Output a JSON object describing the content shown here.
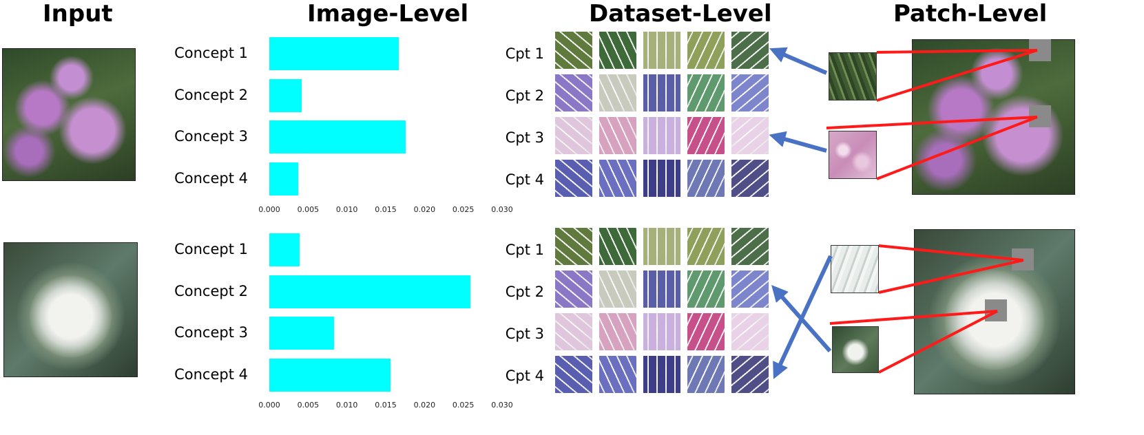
{
  "headers": {
    "input": "Input",
    "image_level": "Image-Level",
    "dataset_level": "Dataset-Level",
    "patch_level": "Patch-Level"
  },
  "colors": {
    "bar": "#00ffff",
    "link_line": "#ff1a1a",
    "arrow": "#4a72c4"
  },
  "chart_data": [
    {
      "type": "bar",
      "orientation": "horizontal",
      "categories": [
        "Concept 1",
        "Concept 2",
        "Concept 3",
        "Concept 4"
      ],
      "values": [
        0.0167,
        0.0042,
        0.0176,
        0.0037
      ],
      "xlim": [
        0,
        0.03
      ],
      "xticks": [
        "0.000",
        "0.005",
        "0.010",
        "0.015",
        "0.020",
        "0.025",
        "0.030"
      ]
    },
    {
      "type": "bar",
      "orientation": "horizontal",
      "categories": [
        "Concept 1",
        "Concept 2",
        "Concept 3",
        "Concept 4"
      ],
      "values": [
        0.0039,
        0.0259,
        0.0083,
        0.0156
      ],
      "xlim": [
        0,
        0.03
      ],
      "xticks": [
        "0.000",
        "0.005",
        "0.010",
        "0.015",
        "0.020",
        "0.025",
        "0.030"
      ]
    }
  ],
  "rows": [
    {
      "input_image": "pink-scabiosa-flower-photo",
      "concept_labels": [
        "Cpt 1",
        "Cpt 2",
        "Cpt 3",
        "Cpt 4"
      ],
      "patches": [
        "green-leaf-patch",
        "pink-petal-patch"
      ],
      "patch_image": "pink-scabiosa-flower-photo"
    },
    {
      "input_image": "white-globe-thistle-photo",
      "concept_labels": [
        "Cpt 1",
        "Cpt 2",
        "Cpt 3",
        "Cpt 4"
      ],
      "patches": [
        "white-petal-patch",
        "white-green-patch"
      ],
      "patch_image": "white-globe-thistle-photo"
    }
  ],
  "concept_prototypes": [
    {
      "name": "green-foliage",
      "colors": [
        "#5f7a3c",
        "#3e6a3a",
        "#a5b07a",
        "#8ea05a",
        "#4c6e48"
      ]
    },
    {
      "name": "purple-green-mix",
      "colors": [
        "#8a78c6",
        "#c8cabe",
        "#5a5ea6",
        "#5f9a6e",
        "#7d86cc"
      ]
    },
    {
      "name": "pink-petals",
      "colors": [
        "#e0c6dc",
        "#d6a2c0",
        "#c9b0df",
        "#c8508a",
        "#e9d2e8"
      ]
    },
    {
      "name": "blue-purple-flowers",
      "colors": [
        "#5a5eb0",
        "#6b6fc0",
        "#3e3e88",
        "#6e78b4",
        "#504e86"
      ]
    }
  ]
}
